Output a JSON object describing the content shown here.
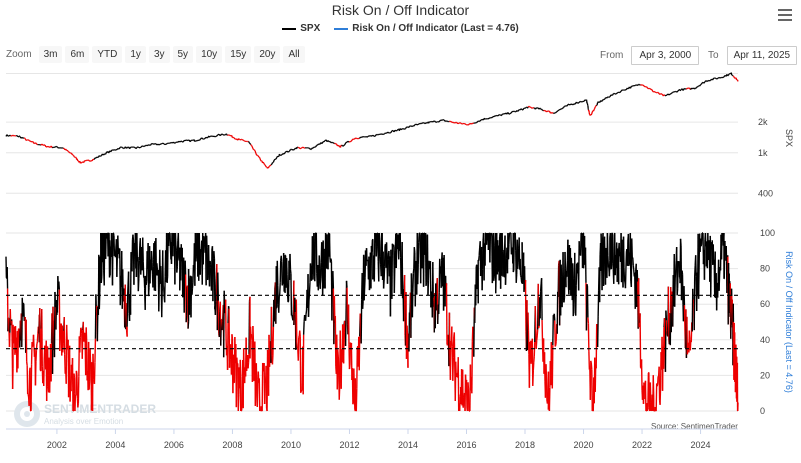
{
  "header": {
    "title": "Risk On / Off Indicator"
  },
  "legend": {
    "items": [
      {
        "label": "SPX",
        "color": "#000000"
      },
      {
        "label": "Risk On / Off Indicator (Last = 4.76)",
        "color": "#2f7ed8"
      }
    ]
  },
  "zoom": {
    "label": "Zoom",
    "buttons": [
      "3m",
      "6m",
      "YTD",
      "1y",
      "3y",
      "5y",
      "10y",
      "15y",
      "20y",
      "All"
    ]
  },
  "range": {
    "from_label": "From",
    "from_value": "Apr 3, 2000",
    "to_label": "To",
    "to_value": "Apr 11, 2025"
  },
  "watermark": {
    "brand": "SENTIMENTRADER",
    "tagline": "Analysis over Emotion"
  },
  "source": "Source: SentimenTrader",
  "chart_data": [
    {
      "type": "line",
      "series": [
        {
          "name": "SPX",
          "color_above": "#000000",
          "color_below": "#ee0000"
        }
      ],
      "yscale": "log",
      "ylabel": "SPX",
      "yticks": [
        400,
        1000,
        2000
      ],
      "ytick_labels": [
        "400",
        "1k",
        "2k"
      ],
      "ylim": [
        300,
        6500
      ],
      "x": [
        2000.26,
        2000.7,
        2001.2,
        2001.7,
        2002.2,
        2002.55,
        2002.8,
        2003.2,
        2003.7,
        2004.2,
        2004.7,
        2005.2,
        2005.7,
        2006.2,
        2006.7,
        2007.2,
        2007.8,
        2008.2,
        2008.55,
        2008.9,
        2009.2,
        2009.6,
        2010.2,
        2010.7,
        2011.2,
        2011.7,
        2012.2,
        2012.7,
        2013.2,
        2013.7,
        2014.2,
        2014.7,
        2015.2,
        2015.7,
        2016.1,
        2016.6,
        2017.2,
        2017.7,
        2018.1,
        2018.5,
        2018.97,
        2019.5,
        2020.1,
        2020.22,
        2020.5,
        2020.9,
        2021.5,
        2021.98,
        2022.4,
        2022.78,
        2023.3,
        2023.8,
        2024.2,
        2024.7,
        2025.05,
        2025.28
      ],
      "y": [
        1480,
        1450,
        1250,
        1150,
        1120,
        950,
        800,
        850,
        1000,
        1130,
        1110,
        1200,
        1220,
        1290,
        1320,
        1430,
        1530,
        1350,
        1280,
        900,
        700,
        950,
        1120,
        1100,
        1320,
        1150,
        1400,
        1440,
        1560,
        1680,
        1850,
        1980,
        2080,
        1950,
        1900,
        2150,
        2350,
        2550,
        2800,
        2700,
        2450,
        2950,
        3300,
        2300,
        3100,
        3600,
        4300,
        4750,
        4000,
        3600,
        4150,
        4300,
        5100,
        5500,
        6000,
        5100
      ]
    },
    {
      "type": "line",
      "series": [
        {
          "name": "Risk On / Off Indicator (Last = 4.76)",
          "color_above": "#000000",
          "color_below": "#ee0000"
        }
      ],
      "ylabel": "Risk On / Off Indicator (Last = 4.76)",
      "ylim": [
        0,
        100
      ],
      "yticks": [
        0,
        20,
        40,
        60,
        80,
        100
      ],
      "reference_lines": [
        65,
        35
      ],
      "x": [
        2000.26,
        2000.5,
        2000.8,
        2001.1,
        2001.4,
        2001.7,
        2002.0,
        2002.3,
        2002.6,
        2002.9,
        2003.2,
        2003.5,
        2003.8,
        2004.1,
        2004.4,
        2004.7,
        2005.0,
        2005.3,
        2005.6,
        2005.9,
        2006.2,
        2006.5,
        2006.8,
        2007.1,
        2007.4,
        2007.7,
        2008.0,
        2008.3,
        2008.6,
        2008.9,
        2009.2,
        2009.5,
        2009.8,
        2010.1,
        2010.4,
        2010.7,
        2011.0,
        2011.3,
        2011.6,
        2011.9,
        2012.2,
        2012.5,
        2012.8,
        2013.1,
        2013.4,
        2013.7,
        2014.0,
        2014.3,
        2014.6,
        2014.9,
        2015.2,
        2015.5,
        2015.8,
        2016.1,
        2016.4,
        2016.7,
        2017.0,
        2017.3,
        2017.6,
        2017.9,
        2018.2,
        2018.5,
        2018.8,
        2019.1,
        2019.4,
        2019.7,
        2020.0,
        2020.3,
        2020.6,
        2020.9,
        2021.2,
        2021.5,
        2021.8,
        2022.1,
        2022.4,
        2022.7,
        2023.0,
        2023.3,
        2023.6,
        2023.9,
        2024.2,
        2024.5,
        2024.8,
        2025.0,
        2025.15,
        2025.28
      ],
      "y": [
        70,
        30,
        55,
        15,
        45,
        20,
        60,
        35,
        5,
        40,
        15,
        85,
        95,
        80,
        60,
        90,
        75,
        85,
        70,
        95,
        80,
        65,
        90,
        85,
        70,
        50,
        30,
        10,
        45,
        2,
        15,
        70,
        85,
        60,
        20,
        90,
        80,
        95,
        15,
        60,
        0,
        75,
        85,
        90,
        70,
        95,
        40,
        85,
        90,
        60,
        75,
        30,
        15,
        0,
        80,
        95,
        85,
        90,
        95,
        80,
        20,
        70,
        5,
        60,
        85,
        70,
        95,
        0,
        80,
        95,
        85,
        90,
        75,
        5,
        0,
        30,
        60,
        85,
        25,
        80,
        95,
        70,
        90,
        60,
        35,
        4.76
      ]
    }
  ],
  "x_axis": {
    "ticks": [
      "2002",
      "2004",
      "2006",
      "2008",
      "2010",
      "2012",
      "2014",
      "2016",
      "2018",
      "2020",
      "2022",
      "2024"
    ]
  }
}
